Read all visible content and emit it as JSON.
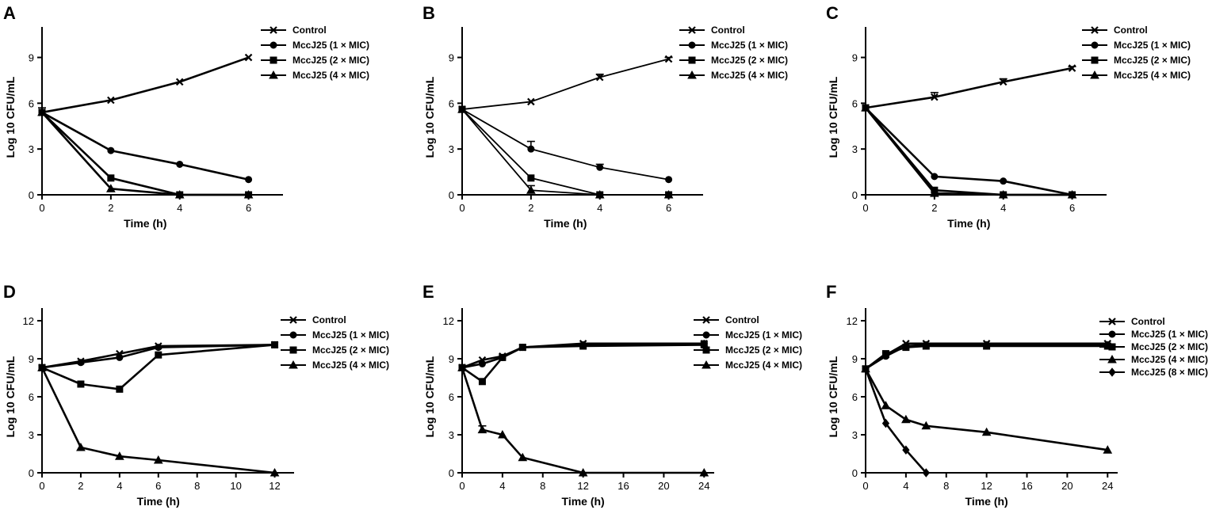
{
  "chart_data": [
    {
      "panel": "A",
      "type": "line",
      "xlabel": "Time (h)",
      "ylabel": "Log 10 CFU/mL",
      "xlim": [
        0,
        7
      ],
      "ylim": [
        0,
        11
      ],
      "xticks": [
        0,
        2,
        4,
        6
      ],
      "yticks": [
        0,
        3,
        6,
        9
      ],
      "x": [
        0,
        2,
        4,
        6
      ],
      "series": [
        {
          "name": "Control",
          "marker": "x",
          "values": [
            5.4,
            6.2,
            7.4,
            9.0
          ],
          "err": [
            0.3,
            0,
            0,
            0
          ]
        },
        {
          "name": "MccJ25 (1 × MIC)",
          "marker": "circle",
          "values": [
            5.4,
            2.9,
            2.0,
            1.0
          ]
        },
        {
          "name": "MccJ25 (2 × MIC)",
          "marker": "square",
          "values": [
            5.4,
            1.1,
            0,
            0
          ]
        },
        {
          "name": "MccJ25 (4 × MIC)",
          "marker": "triangle",
          "values": [
            5.4,
            0.4,
            0,
            0
          ]
        }
      ]
    },
    {
      "panel": "B",
      "type": "line",
      "xlabel": "Time (h)",
      "ylabel": "Log 10 CFU/mL",
      "xlim": [
        0,
        7
      ],
      "ylim": [
        0,
        11
      ],
      "xticks": [
        0,
        2,
        4,
        6
      ],
      "yticks": [
        0,
        3,
        6,
        9
      ],
      "x": [
        0,
        2,
        4,
        6
      ],
      "series": [
        {
          "name": "Control",
          "marker": "x",
          "values": [
            5.6,
            6.1,
            7.7,
            8.9
          ],
          "err": [
            0,
            0,
            0.2,
            0.1
          ]
        },
        {
          "name": "MccJ25 (1 × MIC)",
          "marker": "circle",
          "values": [
            5.6,
            3.0,
            1.8,
            1.0
          ],
          "err": [
            0,
            0.5,
            0.2,
            0
          ]
        },
        {
          "name": "MccJ25 (2 × MIC)",
          "marker": "square",
          "values": [
            5.6,
            1.1,
            0,
            0
          ]
        },
        {
          "name": "MccJ25 (4 × MIC)",
          "marker": "triangle",
          "values": [
            5.6,
            0.3,
            0,
            0
          ],
          "err": [
            0,
            0.3,
            0,
            0
          ]
        }
      ]
    },
    {
      "panel": "C",
      "type": "line",
      "xlabel": "Time (h)",
      "ylabel": "Log 10 CFU/mL",
      "xlim": [
        0,
        7
      ],
      "ylim": [
        0,
        11
      ],
      "xticks": [
        0,
        2,
        4,
        6
      ],
      "yticks": [
        0,
        3,
        6,
        9
      ],
      "x": [
        0,
        2,
        4,
        6
      ],
      "series": [
        {
          "name": "Control",
          "marker": "x",
          "values": [
            5.7,
            6.4,
            7.4,
            8.3
          ],
          "err": [
            0,
            0.3,
            0.2,
            0.1
          ]
        },
        {
          "name": "MccJ25 (1 × MIC)",
          "marker": "circle",
          "values": [
            5.7,
            1.2,
            0.9,
            0
          ]
        },
        {
          "name": "MccJ25 (2 × MIC)",
          "marker": "square",
          "values": [
            5.7,
            0.3,
            0,
            0
          ]
        },
        {
          "name": "MccJ25 (4 × MIC)",
          "marker": "triangle",
          "values": [
            5.7,
            0.1,
            0,
            0
          ]
        }
      ]
    },
    {
      "panel": "D",
      "type": "line",
      "xlabel": "Time (h)",
      "ylabel": "Log 10 CFU/mL",
      "xlim": [
        0,
        13
      ],
      "ylim": [
        0,
        13
      ],
      "xticks": [
        0,
        2,
        4,
        6,
        8,
        10,
        12
      ],
      "yticks": [
        0,
        3,
        6,
        9,
        12
      ],
      "x": [
        0,
        2,
        4,
        6,
        12
      ],
      "series": [
        {
          "name": "Control",
          "marker": "x",
          "values": [
            8.3,
            8.8,
            9.4,
            10.0,
            10.1
          ]
        },
        {
          "name": "MccJ25 (1 × MIC)",
          "marker": "circle",
          "values": [
            8.3,
            8.7,
            9.1,
            9.9,
            10.1
          ]
        },
        {
          "name": "MccJ25 (2 × MIC)",
          "marker": "square",
          "values": [
            8.3,
            7.0,
            6.6,
            9.3,
            10.1
          ]
        },
        {
          "name": "MccJ25 (4 × MIC)",
          "marker": "triangle",
          "values": [
            8.3,
            2.0,
            1.3,
            1.0,
            0
          ]
        }
      ]
    },
    {
      "panel": "E",
      "type": "line",
      "xlabel": "Time (h)",
      "ylabel": "Log 10 CFU/mL",
      "xlim": [
        0,
        25
      ],
      "ylim": [
        0,
        13
      ],
      "xticks": [
        0,
        4,
        8,
        12,
        16,
        20,
        24
      ],
      "yticks": [
        0,
        3,
        6,
        9,
        12
      ],
      "x": [
        0,
        2,
        4,
        6,
        12,
        24
      ],
      "series": [
        {
          "name": "Control",
          "marker": "x",
          "values": [
            8.3,
            8.9,
            9.2,
            9.9,
            10.2,
            10.2
          ]
        },
        {
          "name": "MccJ25 (1 × MIC)",
          "marker": "circle",
          "values": [
            8.3,
            8.6,
            9.1,
            9.9,
            10.1,
            10.2
          ]
        },
        {
          "name": "MccJ25 (2 × MIC)",
          "marker": "square",
          "values": [
            8.3,
            7.2,
            9.1,
            9.9,
            10.0,
            10.1
          ]
        },
        {
          "name": "MccJ25 (4 × MIC)",
          "marker": "triangle",
          "values": [
            8.3,
            3.4,
            3.0,
            1.2,
            0,
            0
          ],
          "err": [
            0,
            0.3,
            0,
            0,
            0,
            0
          ]
        }
      ]
    },
    {
      "panel": "F",
      "type": "line",
      "xlabel": "Time (h)",
      "ylabel": "Log 10 CFU/mL",
      "xlim": [
        0,
        25
      ],
      "ylim": [
        0,
        13
      ],
      "xticks": [
        0,
        4,
        8,
        12,
        16,
        20,
        24
      ],
      "yticks": [
        0,
        3,
        6,
        9,
        12
      ],
      "x": [
        0,
        2,
        4,
        6,
        12,
        24
      ],
      "series": [
        {
          "name": "Control",
          "marker": "x",
          "values": [
            8.2,
            9.3,
            10.2,
            10.2,
            10.2,
            10.2
          ]
        },
        {
          "name": "MccJ25 (1 × MIC)",
          "marker": "circle",
          "values": [
            8.2,
            9.2,
            10.0,
            10.1,
            10.1,
            10.1
          ]
        },
        {
          "name": "MccJ25 (2 × MIC)",
          "marker": "square",
          "values": [
            8.2,
            9.4,
            9.9,
            10.0,
            10.0,
            10.0
          ]
        },
        {
          "name": "MccJ25 (4 × MIC)",
          "marker": "triangle",
          "values": [
            8.2,
            5.3,
            4.2,
            3.7,
            3.2,
            1.8
          ]
        },
        {
          "name": "MccJ25 (8 × MIC)",
          "marker": "diamond",
          "x": [
            0,
            2,
            4,
            6
          ],
          "values": [
            8.2,
            3.9,
            1.8,
            0
          ]
        }
      ]
    }
  ]
}
